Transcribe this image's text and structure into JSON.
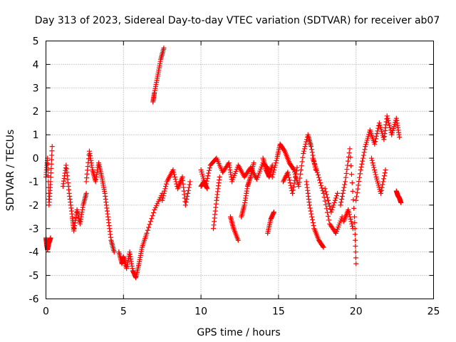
{
  "chart_data": {
    "type": "scatter",
    "title": "Day 313 of 2023, Sidereal Day-to-day VTEC variation (SDTVAR) for receiver ab07",
    "xlabel": "GPS time / hours",
    "ylabel": "SDTVAR / TECUs",
    "xlim": [
      0,
      25
    ],
    "ylim": [
      -6,
      5
    ],
    "xticks": [
      0,
      5,
      10,
      15,
      20,
      25
    ],
    "yticks": [
      -6,
      -5,
      -4,
      -3,
      -2,
      -1,
      0,
      1,
      2,
      3,
      4,
      5
    ],
    "grid": true,
    "marker": "+",
    "color": "#ff0000",
    "series": [
      {
        "name": "SDTVAR",
        "segments": [
          {
            "x": [
              0.0,
              0.1,
              0.2,
              0.3,
              0.4
            ],
            "y": [
              -0.8,
              0.0,
              -2.0,
              -1.0,
              0.5
            ]
          },
          {
            "x": [
              0.0,
              0.05,
              0.1,
              0.2,
              0.3
            ],
            "y": [
              -3.4,
              -3.7,
              -3.9,
              -3.6,
              -3.4
            ]
          },
          {
            "x": [
              1.1,
              1.3,
              1.5,
              1.7,
              1.8,
              2.0,
              2.2,
              2.4,
              2.6
            ],
            "y": [
              -1.2,
              -0.3,
              -1.5,
              -2.5,
              -3.1,
              -2.2,
              -2.8,
              -2.0,
              -1.5
            ]
          },
          {
            "x": [
              2.6,
              2.8,
              3.0,
              3.2,
              3.4,
              3.6,
              3.8,
              4.0,
              4.2,
              4.4
            ],
            "y": [
              -1.0,
              0.3,
              -0.5,
              -1.0,
              -0.2,
              -0.8,
              -1.5,
              -2.5,
              -3.5,
              -4.0
            ]
          },
          {
            "x": [
              4.7,
              4.9,
              5.0,
              5.2,
              5.4,
              5.6,
              5.8,
              6.0,
              6.2,
              6.5,
              7.0,
              7.5
            ],
            "y": [
              -4.0,
              -4.5,
              -4.2,
              -4.7,
              -4.0,
              -4.8,
              -5.1,
              -4.5,
              -3.8,
              -3.2,
              -2.2,
              -1.5
            ]
          },
          {
            "x": [
              6.9,
              7.0,
              7.2,
              7.4,
              7.6
            ],
            "y": [
              2.4,
              2.8,
              3.5,
              4.2,
              4.7
            ]
          },
          {
            "x": [
              7.5,
              7.8,
              8.2,
              8.5,
              8.8,
              9.0,
              9.3
            ],
            "y": [
              -1.8,
              -1.0,
              -0.5,
              -1.3,
              -0.8,
              -2.0,
              -1.0
            ]
          },
          {
            "x": [
              10.0,
              10.3,
              10.6,
              11.0,
              11.4,
              11.8,
              12.0,
              12.4,
              12.8,
              13.2,
              13.6,
              14.0,
              14.4
            ],
            "y": [
              -0.5,
              -1.2,
              -0.3,
              0.0,
              -0.6,
              -0.2,
              -1.0,
              -0.3,
              -0.8,
              -0.4,
              -0.9,
              -0.2,
              -0.5
            ]
          },
          {
            "x": [
              10.0,
              10.2,
              10.4
            ],
            "y": [
              -1.2,
              -1.0,
              -1.3
            ]
          },
          {
            "x": [
              10.8,
              11.0,
              11.2
            ],
            "y": [
              -3.0,
              -1.8,
              -0.8
            ]
          },
          {
            "x": [
              11.9,
              12.1,
              12.4
            ],
            "y": [
              -2.5,
              -3.0,
              -3.5
            ]
          },
          {
            "x": [
              12.6,
              12.8,
              13.0,
              13.2,
              13.4
            ],
            "y": [
              -2.5,
              -2.0,
              -1.2,
              -0.8,
              -0.2
            ]
          },
          {
            "x": [
              14.0,
              14.2,
              14.4,
              14.6
            ],
            "y": [
              0.0,
              -0.5,
              -0.8,
              -0.3
            ]
          },
          {
            "x": [
              14.3,
              14.5,
              14.7
            ],
            "y": [
              -3.2,
              -2.6,
              -2.3
            ]
          },
          {
            "x": [
              14.6,
              14.9,
              15.1,
              15.4,
              15.7,
              16.0,
              16.3,
              16.6,
              16.9,
              17.1,
              17.4
            ],
            "y": [
              -0.8,
              0.0,
              0.6,
              0.3,
              -0.2,
              -0.5,
              -1.2,
              0.2,
              1.0,
              0.5,
              -0.5
            ]
          },
          {
            "x": [
              15.3,
              15.6,
              15.9,
              16.2
            ],
            "y": [
              -1.0,
              -0.6,
              -1.5,
              -0.4
            ]
          },
          {
            "x": [
              16.8,
              17.0,
              17.3,
              17.6,
              17.9
            ],
            "y": [
              -1.0,
              -2.0,
              -3.0,
              -3.5,
              -3.8
            ]
          },
          {
            "x": [
              17.2,
              17.5,
              17.9,
              18.3,
              18.7,
              19.1
            ],
            "y": [
              0.0,
              -0.6,
              -1.5,
              -2.8,
              -3.2,
              -2.5
            ]
          },
          {
            "x": [
              18.0,
              18.4,
              18.8
            ],
            "y": [
              -1.3,
              -2.3,
              -1.5
            ]
          },
          {
            "x": [
              19.0,
              19.3,
              19.6,
              19.9,
              20.0
            ],
            "y": [
              -2.0,
              -1.0,
              0.4,
              -2.5,
              -4.5
            ]
          },
          {
            "x": [
              19.2,
              19.5,
              19.8
            ],
            "y": [
              -2.7,
              -2.2,
              -3.0
            ]
          },
          {
            "x": [
              20.0,
              20.3,
              20.6,
              20.9,
              21.2,
              21.5,
              21.8,
              22.0,
              22.3,
              22.6,
              22.8
            ],
            "y": [
              -1.8,
              -0.5,
              0.5,
              1.2,
              0.6,
              1.5,
              0.8,
              1.8,
              1.0,
              1.7,
              0.9
            ]
          },
          {
            "x": [
              21.0,
              21.3,
              21.6,
              21.9
            ],
            "y": [
              0.0,
              -0.8,
              -1.5,
              -0.5
            ]
          },
          {
            "x": [
              22.6,
              22.7,
              22.8,
              22.9
            ],
            "y": [
              -1.4,
              -1.6,
              -1.7,
              -1.9
            ]
          }
        ]
      }
    ]
  }
}
